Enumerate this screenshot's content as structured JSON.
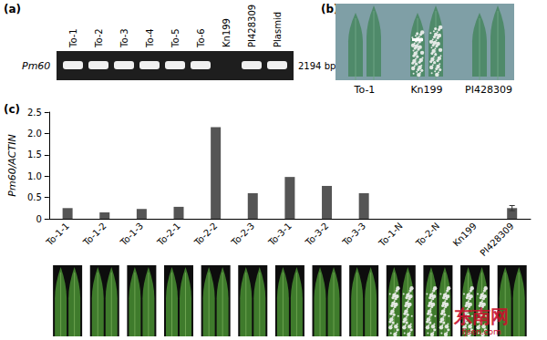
{
  "panel_labels": [
    "(a)",
    "(b)",
    "(c)"
  ],
  "gel": {
    "gene": "Pm60",
    "size_label": "2194 bp",
    "lanes": [
      {
        "label": "To-1",
        "band": true
      },
      {
        "label": "To-2",
        "band": true
      },
      {
        "label": "To-3",
        "band": true
      },
      {
        "label": "To-4",
        "band": true
      },
      {
        "label": "To-5",
        "band": true
      },
      {
        "label": "To-6",
        "band": true
      },
      {
        "label": "Kn199",
        "band": false
      },
      {
        "label": "PI428309",
        "band": true
      },
      {
        "label": "Plasmid",
        "band": true
      }
    ]
  },
  "leaf_panel": {
    "samples": [
      {
        "label": "To-1",
        "diseased": false
      },
      {
        "label": "Kn199",
        "diseased": true
      },
      {
        "label": "PI428309",
        "diseased": false
      }
    ]
  },
  "chart_data": {
    "type": "bar",
    "ylabel": "Pm60/ACTIN",
    "categories": [
      "To-1-1",
      "To-1-2",
      "To-1-3",
      "To-2-1",
      "To-2-2",
      "To-2-3",
      "To-3-1",
      "To-3-2",
      "To-3-3",
      "To-1-N",
      "To-2-N",
      "Kn199",
      "PI428309"
    ],
    "values": [
      0.25,
      0.15,
      0.23,
      0.28,
      2.15,
      0.6,
      0.98,
      0.77,
      0.6,
      0,
      0,
      0,
      0.25
    ],
    "errors": [
      null,
      null,
      null,
      null,
      null,
      null,
      null,
      null,
      null,
      null,
      null,
      null,
      0.06
    ],
    "color": "#555555",
    "ylim": [
      0,
      2.5
    ],
    "yticks": [
      0,
      0.5,
      {
        "value": 1,
        "label": "1.0"
      },
      1.5,
      {
        "value": 2,
        "label": "2.0"
      },
      2.5
    ],
    "grid": false
  },
  "leaf_strip": {
    "diseased": [
      false,
      false,
      false,
      false,
      false,
      false,
      false,
      false,
      false,
      true,
      true,
      true,
      false
    ]
  },
  "watermark": {
    "text": "东南网",
    "site": "fjsen.com"
  }
}
